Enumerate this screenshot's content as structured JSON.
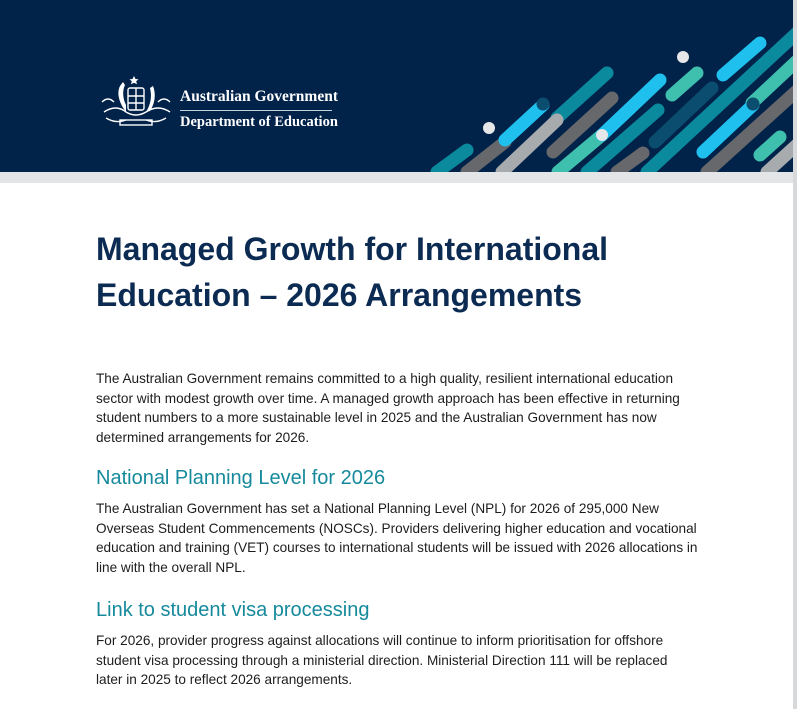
{
  "header": {
    "org_line1": "Australian Government",
    "org_line2": "Department of Education",
    "logo_icon": "commonwealth-coat-of-arms",
    "colors": {
      "navy": "#012249",
      "teal": "#0b8a9e",
      "blue": "#1fc0ee",
      "green": "#3fbfae",
      "gray": "#66686b",
      "light_gray": "#a8abae"
    }
  },
  "document": {
    "title_lines": [
      "Managed Growth for International",
      "Education – 2026 Arrangements"
    ],
    "intro_lines": [
      "The Australian Government remains committed to a high quality, resilient international education",
      "sector with modest growth over time. A managed growth approach has been effective in returning",
      "student numbers to a more sustainable level in 2025 and the Australian Government has now",
      "determined arrangements for 2026."
    ],
    "sections": [
      {
        "heading": "National Planning Level for 2026",
        "lines": [
          "The Australian Government has set a National Planning Level (NPL) for 2026 of 295,000 New",
          "Overseas Student Commencements (NOSCs). Providers delivering higher education and vocational",
          "education and training (VET) courses to international students will be issued with 2026 allocations in",
          "line with the overall NPL."
        ]
      },
      {
        "heading": "Link to student visa processing",
        "lines": [
          "For 2026, provider progress against allocations will continue to inform prioritisation for offshore",
          "student visa processing through a ministerial direction. Ministerial Direction 111 will be replaced",
          "later in 2025 to reflect 2026 arrangements."
        ]
      }
    ]
  }
}
